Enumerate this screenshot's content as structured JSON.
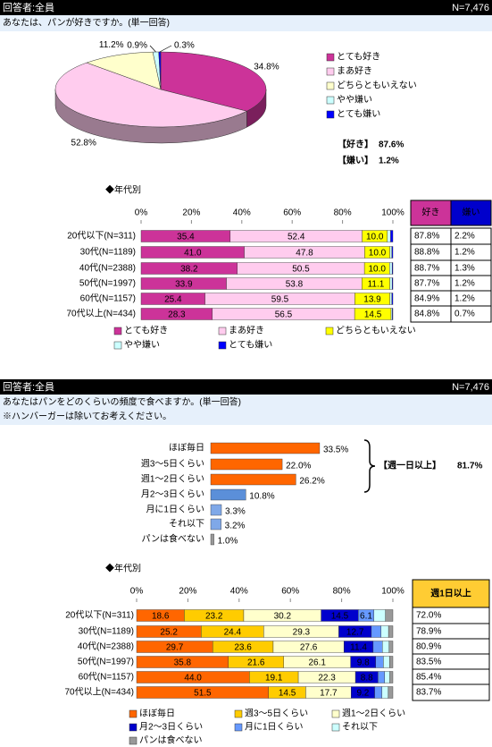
{
  "sections": [
    {
      "header": {
        "respondents": "回答者:全員",
        "n": "N=7,476"
      },
      "question": [
        "あなたは、パンが好きですか。(単一回答)"
      ],
      "summary": [
        {
          "label": "【好き】",
          "value": "87.6%"
        },
        {
          "label": "【嫌い】",
          "value": "1.2%"
        }
      ],
      "subtitle": "◆年代別",
      "table": {
        "header": [
          "好き",
          "嫌い"
        ],
        "header_colors": [
          "#cc3399",
          "#0000cc"
        ],
        "rows": [
          [
            "87.8%",
            "2.2%"
          ],
          [
            "88.8%",
            "1.2%"
          ],
          [
            "88.7%",
            "1.3%"
          ],
          [
            "87.7%",
            "1.2%"
          ],
          [
            "84.9%",
            "1.2%"
          ],
          [
            "84.8%",
            "0.7%"
          ]
        ]
      }
    },
    {
      "header": {
        "respondents": "回答者:全員",
        "n": "N=7,476"
      },
      "question": [
        "あなたはパンをどのくらいの頻度で食べますか。(単一回答)",
        "※ハンバーガーは除いてお考えください。"
      ],
      "bracket": {
        "label": "【週一日以上】",
        "value": "81.7%"
      },
      "subtitle": "◆年代別",
      "table": {
        "header": [
          "週1日以上"
        ],
        "header_colors": [
          "#ffcc33"
        ],
        "rows": [
          [
            "72.0%"
          ],
          [
            "78.9%"
          ],
          [
            "80.9%"
          ],
          [
            "83.5%"
          ],
          [
            "85.4%"
          ],
          [
            "83.7%"
          ]
        ]
      }
    }
  ],
  "chart_data": [
    {
      "type": "pie",
      "categories": [
        "とても好き",
        "まあ好き",
        "どちらともいえない",
        "やや嫌い",
        "とても嫌い"
      ],
      "values": [
        34.8,
        52.8,
        11.2,
        0.9,
        0.3
      ],
      "value_labels": [
        "34.8%",
        "52.8%",
        "11.2%",
        "0.9%",
        "0.3%"
      ],
      "colors": [
        "#cc3399",
        "#ffccee",
        "#ffffcc",
        "#ccffff",
        "#0000ff"
      ]
    },
    {
      "type": "stacked_bar",
      "horizontal": true,
      "categories": [
        "20代以下(N=311)",
        "30代(N=1189)",
        "40代(N=2388)",
        "50代(N=1997)",
        "60代(N=1157)",
        "70代以上(N=434)"
      ],
      "series": [
        {
          "name": "とても好き",
          "color": "#cc3399",
          "values": [
            35.4,
            41.0,
            38.2,
            33.9,
            25.4,
            28.3
          ],
          "value_labels": [
            "35.4",
            "41.0",
            "38.2",
            "33.9",
            "25.4",
            "28.3"
          ]
        },
        {
          "name": "まあ好き",
          "color": "#ffccee",
          "values": [
            52.4,
            47.8,
            50.5,
            53.8,
            59.5,
            56.5
          ]
        },
        {
          "name": "どちらともいえない",
          "color": "#ffff00",
          "values": [
            10.0,
            10.0,
            10.0,
            11.1,
            13.9,
            14.5
          ],
          "value_labels": [
            "10.0",
            "10.0",
            "10.0",
            "11.1",
            "13.9",
            "14.5"
          ]
        },
        {
          "name": "やや嫌い",
          "color": "#ccffff",
          "values": [
            1.3,
            0.8,
            1.0,
            0.9,
            0.8,
            0.5
          ]
        },
        {
          "name": "とても嫌い",
          "color": "#0000ff",
          "values": [
            0.9,
            0.4,
            0.3,
            0.3,
            0.4,
            0.2
          ]
        }
      ],
      "xlim": [
        0,
        100
      ],
      "xticks": [
        {
          "value": 0,
          "label": "0%"
        },
        {
          "value": 20,
          "label": "20%"
        },
        {
          "value": 40,
          "label": "40%"
        },
        {
          "value": 60,
          "label": "60%"
        },
        {
          "value": 80,
          "label": "80%"
        },
        {
          "value": 100,
          "label": "100%"
        }
      ]
    },
    {
      "type": "bar",
      "horizontal": true,
      "categories": [
        "ほぼ毎日",
        "週3～5日くらい",
        "週1～2日くらい",
        "月2～3日くらい",
        "月に1日くらい",
        "それ以下",
        "パンは食べない"
      ],
      "values": [
        33.5,
        22.0,
        26.2,
        10.8,
        3.3,
        3.2,
        1.0
      ],
      "value_labels": [
        "33.5%",
        "22.0%",
        "26.2%",
        "10.8%",
        "3.3%",
        "3.2%",
        "1.0%"
      ],
      "colors": [
        "#ff6600",
        "#ff6600",
        "#ff6600",
        "#5b8fd9",
        "#7fa8e8",
        "#7fa8e8",
        "#999999"
      ]
    },
    {
      "type": "stacked_bar",
      "horizontal": true,
      "categories": [
        "20代以下(N=311)",
        "30代(N=1189)",
        "40代(N=2388)",
        "50代(N=1997)",
        "60代(N=1157)",
        "70代以上(N=434)"
      ],
      "series": [
        {
          "name": "ほぼ毎日",
          "color": "#ff6600",
          "values": [
            18.6,
            25.2,
            29.7,
            35.8,
            44.0,
            51.5
          ],
          "value_labels": [
            "18.6",
            "25.2",
            "29.7",
            "35.8",
            "44.0",
            "51.5"
          ]
        },
        {
          "name": "週3～5日くらい",
          "color": "#ffcc00",
          "values": [
            23.2,
            24.4,
            23.6,
            21.6,
            19.1,
            14.5
          ]
        },
        {
          "name": "週1～2日くらい",
          "color": "#ffffcc",
          "values": [
            30.2,
            29.3,
            27.6,
            26.1,
            22.3,
            17.7
          ]
        },
        {
          "name": "月2～3日くらい",
          "color": "#0000cc",
          "values": [
            14.5,
            12.7,
            11.4,
            9.8,
            8.8,
            9.2
          ]
        },
        {
          "name": "月に1日くらい",
          "color": "#6699ff",
          "values": [
            6.1,
            3.8,
            3.6,
            3.0,
            2.6,
            2.8
          ]
        },
        {
          "name": "それ以下",
          "color": "#ccffff",
          "values": [
            4.5,
            2.9,
            2.6,
            2.4,
            2.0,
            2.5
          ]
        },
        {
          "name": "パンは食べない",
          "color": "#999999",
          "values": [
            2.9,
            1.7,
            1.5,
            1.3,
            1.2,
            1.8
          ]
        }
      ],
      "xlim": [
        0,
        100
      ],
      "xticks": [
        {
          "value": 0,
          "label": "0%"
        },
        {
          "value": 20,
          "label": "20%"
        },
        {
          "value": 40,
          "label": "40%"
        },
        {
          "value": 60,
          "label": "60%"
        },
        {
          "value": 80,
          "label": "80%"
        },
        {
          "value": 100,
          "label": "100%"
        }
      ]
    }
  ]
}
